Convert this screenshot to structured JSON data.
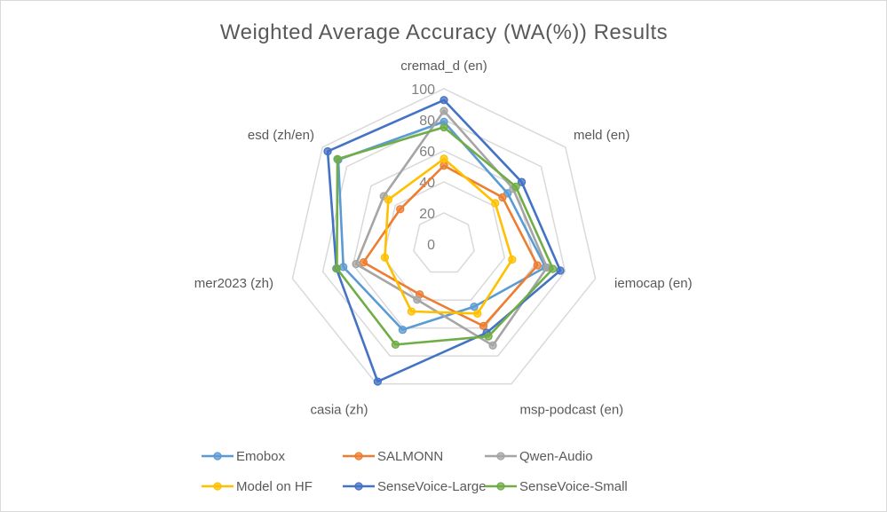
{
  "chart_data": {
    "type": "radar",
    "title": "Weighted Average Accuracy (WA(%)) Results",
    "categories": [
      "cremad_d (en)",
      "meld (en)",
      "iemocap (en)",
      "msp-podcast (en)",
      "casia (zh)",
      "mer2023 (zh)",
      "esd  (zh/en)"
    ],
    "rlim": [
      0,
      100
    ],
    "ticks": [
      0,
      20,
      40,
      60,
      80,
      100
    ],
    "grid": true,
    "legend_position": "bottom",
    "series": [
      {
        "name": "Emobox",
        "color": "#5B9BD5",
        "values": [
          78.7,
          52.4,
          67,
          44.8,
          61.3,
          66.4,
          87
        ]
      },
      {
        "name": "SALMONN",
        "color": "#ED7D31",
        "values": [
          50.5,
          48.2,
          61.7,
          58.6,
          36,
          53.1,
          36
        ]
      },
      {
        "name": "Qwen-Audio",
        "color": "#A5A5A5",
        "values": [
          85.7,
          57,
          68,
          72.5,
          39.8,
          58,
          49.5
        ]
      },
      {
        "name": "Model on HF",
        "color": "#FFC000",
        "values": [
          54.9,
          42.2,
          45,
          49.7,
          48.2,
          39,
          45.8
        ]
      },
      {
        "name": "SenseVoice-Large",
        "color": "#4472C4",
        "values": [
          92.7,
          64,
          76.8,
          63.4,
          98.3,
          71,
          95.7
        ]
      },
      {
        "name": "SenseVoice-Small",
        "color": "#70AD47",
        "values": [
          75.2,
          59.2,
          71.9,
          66,
          71.9,
          70.7,
          87.7
        ]
      }
    ]
  }
}
